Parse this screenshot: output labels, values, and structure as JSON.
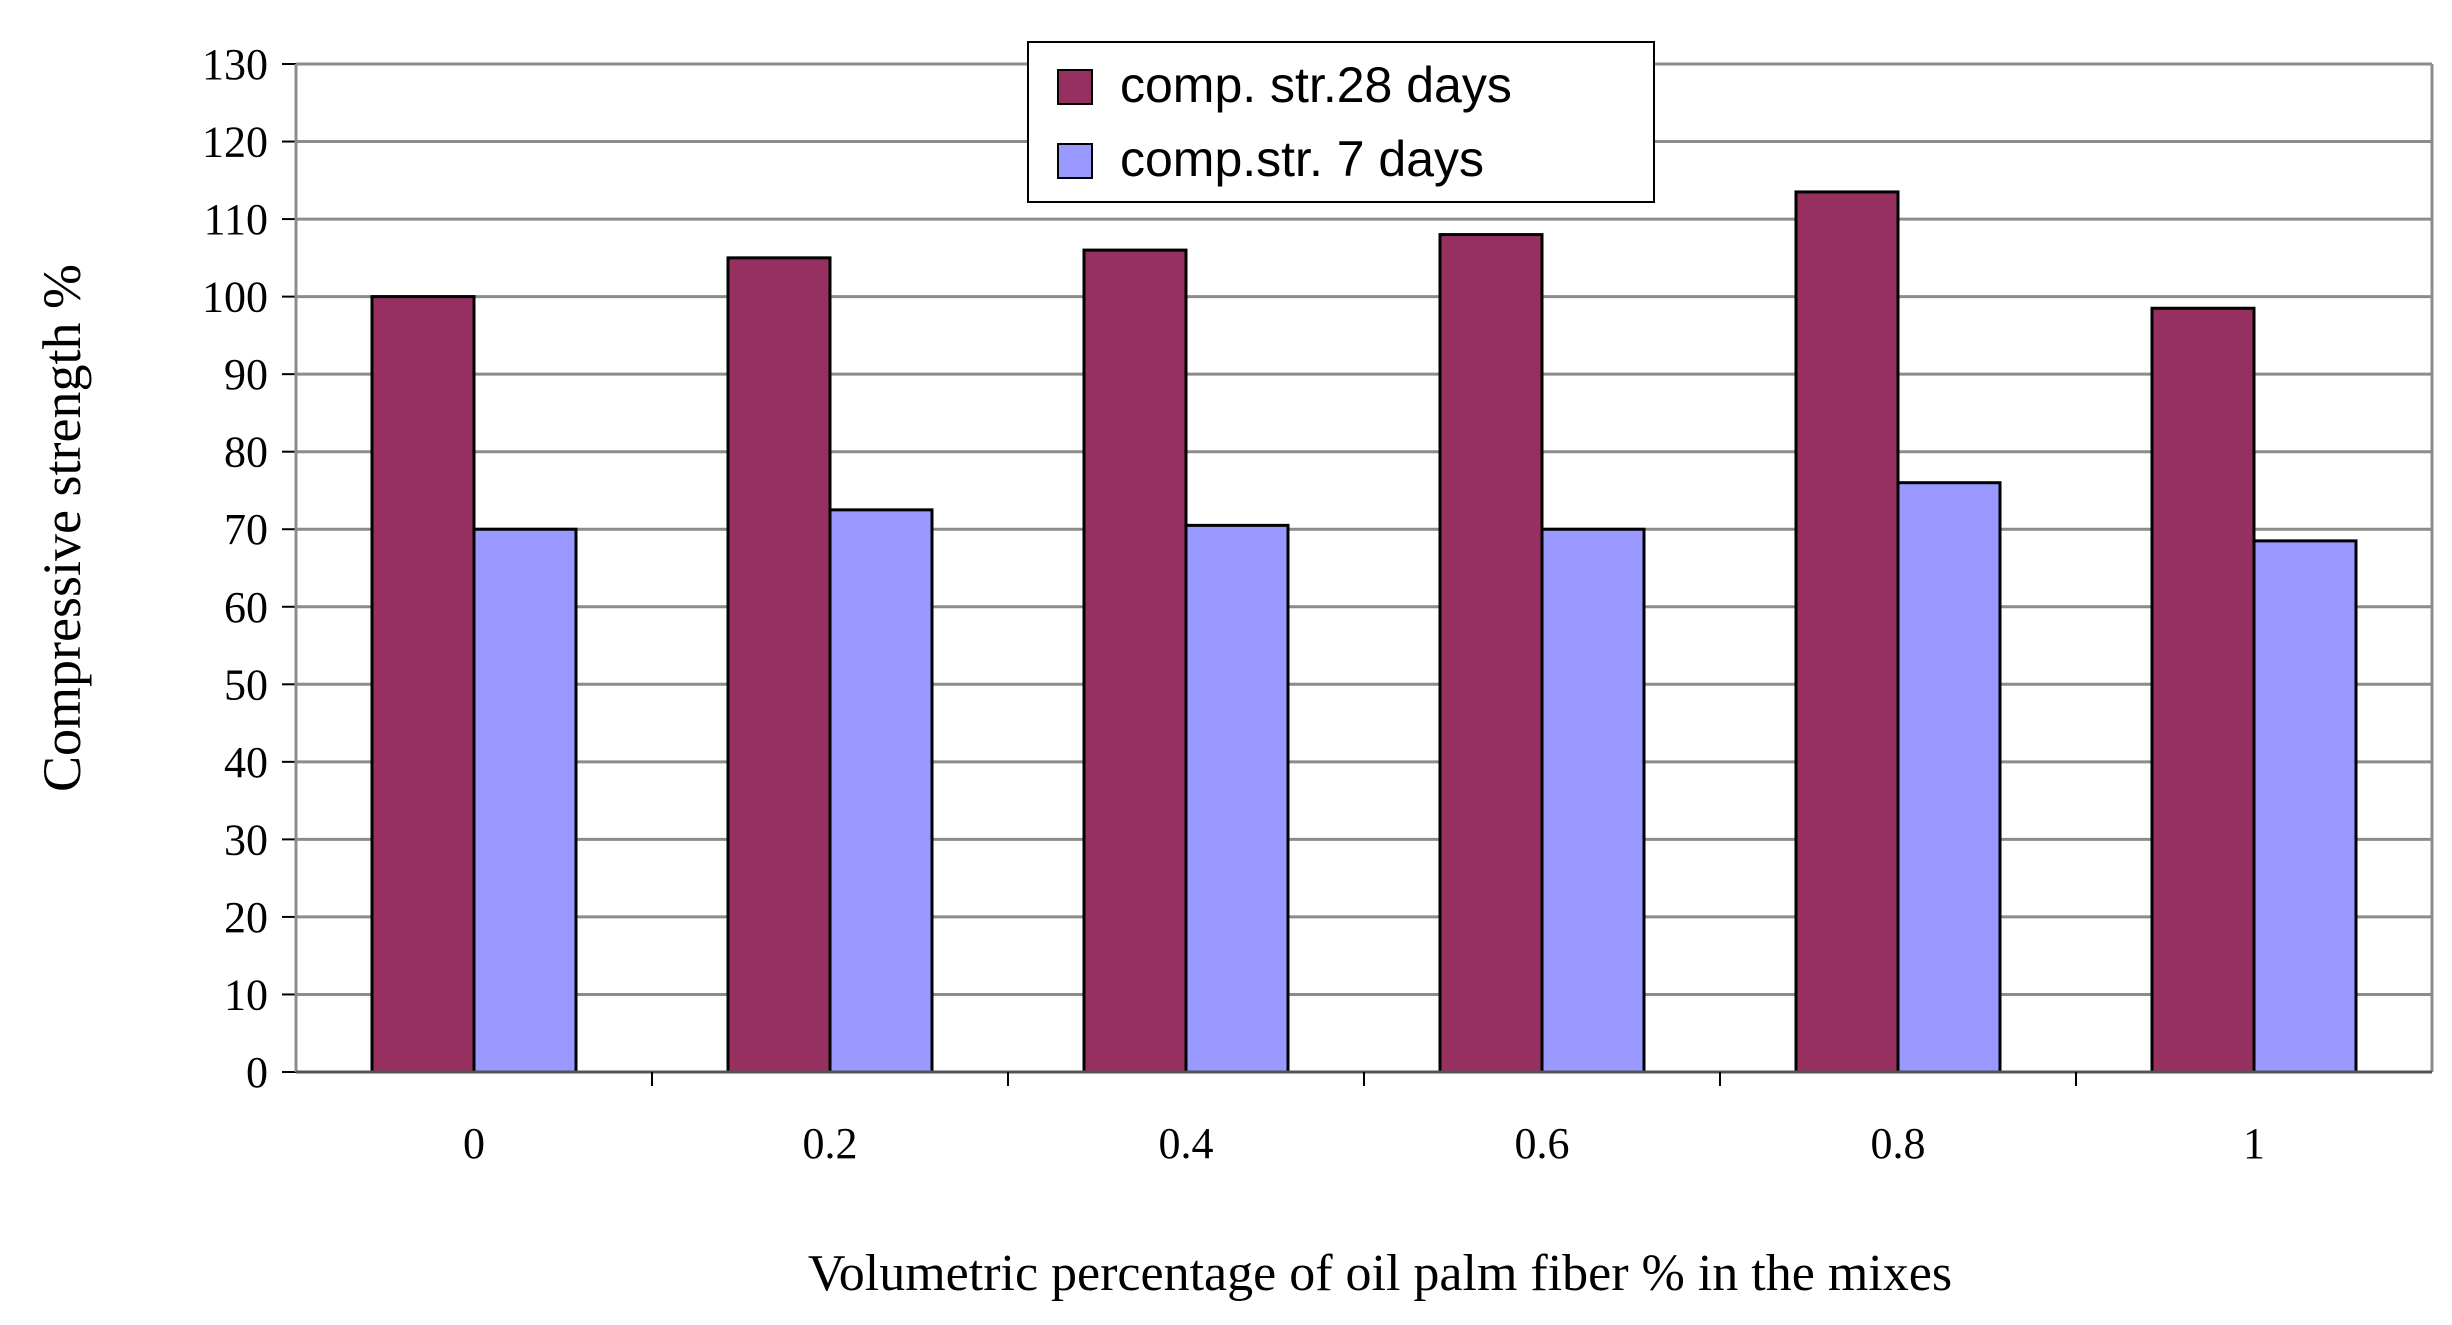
{
  "chart_data": {
    "type": "bar",
    "title": "",
    "xlabel": "Volumetric percentage of oil palm fiber  % in the mixes",
    "ylabel": "Compressive  strength %",
    "categories": [
      "0",
      "0.2",
      "0.4",
      "0.6",
      "0.8",
      "1"
    ],
    "series": [
      {
        "name": "comp. str.28 days",
        "color": "#953060",
        "values": [
          100,
          105,
          106,
          108,
          113.5,
          98.5
        ]
      },
      {
        "name": "comp.str. 7 days",
        "color": "#9999ff",
        "values": [
          70,
          72.5,
          70.5,
          70,
          76,
          68.5
        ]
      }
    ],
    "ylim": [
      0,
      130
    ],
    "yticks": [
      0,
      10,
      20,
      30,
      40,
      50,
      60,
      70,
      80,
      90,
      100,
      110,
      120,
      130
    ],
    "grid": true,
    "legend_position": "top-center"
  }
}
